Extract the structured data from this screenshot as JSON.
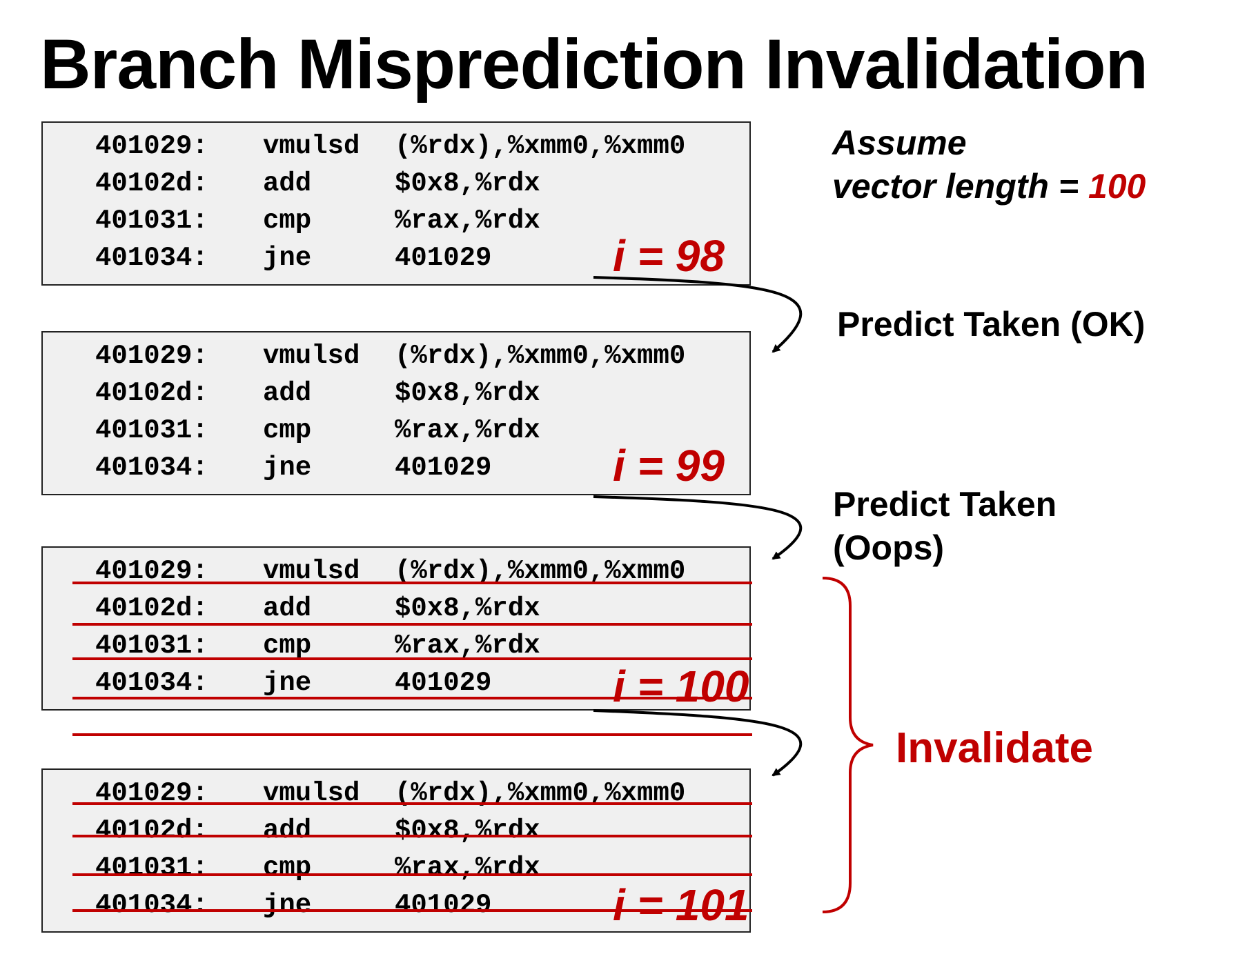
{
  "title": "Branch Misprediction Invalidation",
  "assume": {
    "line1": "Assume",
    "line2_prefix": "vector length = ",
    "line2_value": "100"
  },
  "predict_ok_label": "Predict Taken (OK)",
  "predict_oops_label": "Predict Taken (Oops)",
  "invalidate_label": "Invalidate",
  "code_lines": [
    {
      "addr": "401029:",
      "op": "vmulsd",
      "args": "(%rdx),%xmm0,%xmm0"
    },
    {
      "addr": "40102d:",
      "op": "add",
      "args": "$0x8,%rdx"
    },
    {
      "addr": "401031:",
      "op": "cmp",
      "args": "%rax,%rdx"
    },
    {
      "addr": "401034:",
      "op": "jne",
      "args": "401029"
    }
  ],
  "blocks": [
    {
      "iteration": "i = 98"
    },
    {
      "iteration": "i = 99"
    },
    {
      "iteration": "i = 100"
    },
    {
      "iteration": "i = 101"
    }
  ],
  "colors": {
    "accent_red": "#c00000",
    "code_bg": "#f0f0f0"
  },
  "icons": [
    "curved-arrow-icon",
    "curly-brace-icon"
  ]
}
